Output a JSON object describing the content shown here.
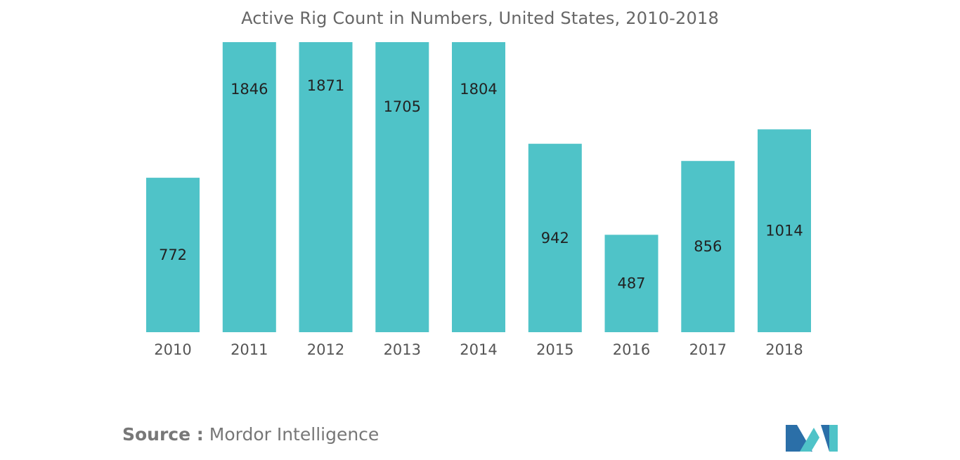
{
  "chart_data": {
    "type": "bar",
    "title": "Active Rig Count in Numbers, United States, 2010-2018",
    "categories": [
      "2010",
      "2011",
      "2012",
      "2013",
      "2014",
      "2015",
      "2016",
      "2017",
      "2018"
    ],
    "values": [
      772,
      1846,
      1871,
      1705,
      1804,
      942,
      487,
      856,
      1014
    ],
    "data_labels": [
      "772",
      "1846",
      "1871",
      "1705",
      "1804",
      "942",
      "487",
      "856",
      "1014"
    ],
    "xlabel": "",
    "ylabel": "",
    "grid": false,
    "legend": "none",
    "bar_color": "#4fc3c8"
  },
  "source": {
    "prefix": "Source :",
    "text": "Mordor Intelligence"
  },
  "logo": {
    "icon": "mordor-intelligence-logo",
    "colors": [
      "#2b6fa8",
      "#4fc3c8"
    ]
  }
}
